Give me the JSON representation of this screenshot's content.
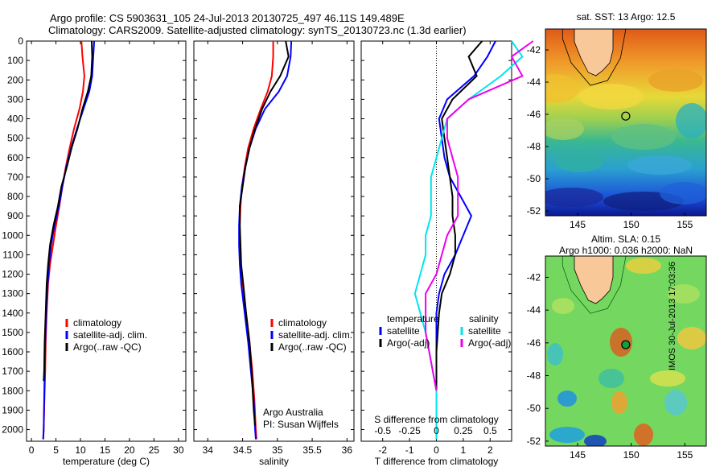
{
  "header": {
    "line1": "Argo profile: CS 5903631_105 24-Jul-2013 20130725_497 46.11S 149.489E",
    "line2": "Climatology: CARS2009. Satellite-adjusted climatology: synTS_20130723.nc (1.3d earlier)"
  },
  "side_stamp": "IMOS 30-Jul-2013 17:03:36",
  "colors": {
    "climatology": "#ff0000",
    "satellite": "#0000ff",
    "argo": "#000000",
    "sat_salinity": "#00e5ee",
    "argo_salinity": "#ee00ee"
  },
  "chart_data": [
    {
      "type": "line",
      "panel": "temperature",
      "xlabel": "temperature (deg C)",
      "ylabel": "",
      "xlim": [
        -1,
        31.5
      ],
      "ylim": [
        2060,
        0
      ],
      "y_reversed": true,
      "xticks": [
        "0",
        "5",
        "10",
        "15",
        "20",
        "25",
        "30"
      ],
      "yticks": [
        "0",
        "100",
        "200",
        "300",
        "400",
        "500",
        "600",
        "700",
        "800",
        "900",
        "1000",
        "1100",
        "1200",
        "1300",
        "1400",
        "1500",
        "1600",
        "1700",
        "1800",
        "1900",
        "2000"
      ],
      "legend": [
        "climatology",
        "satellite-adj. clim.",
        "Argo(..raw -QC)"
      ],
      "series": [
        {
          "name": "climatology",
          "color": "#ff0000",
          "x": [
            10.2,
            10.4,
            10.8,
            10.5,
            9.8,
            8.7,
            7.8,
            7.0,
            6.3,
            5.7,
            5.0,
            4.4,
            3.8,
            3.4,
            3.1,
            2.9,
            2.8,
            2.7,
            2.6,
            2.5,
            2.4
          ],
          "y": [
            0,
            80,
            180,
            260,
            350,
            450,
            550,
            650,
            750,
            850,
            950,
            1050,
            1150,
            1250,
            1400,
            1550,
            1700,
            1800,
            1900,
            2000,
            2050
          ]
        },
        {
          "name": "satellite-adj. clim.",
          "color": "#0000ff",
          "x": [
            12.8,
            12.6,
            12.4,
            11.8,
            10.6,
            9.3,
            8.1,
            7.1,
            6.3,
            5.6,
            4.7,
            4.0,
            3.6,
            3.3,
            3.0,
            2.8,
            2.7,
            2.6,
            2.5,
            2.4
          ],
          "y": [
            0,
            80,
            180,
            260,
            350,
            450,
            550,
            650,
            750,
            850,
            950,
            1050,
            1150,
            1250,
            1400,
            1550,
            1700,
            1850,
            2000,
            2050
          ]
        },
        {
          "name": "Argo(..raw -QC)",
          "color": "#000000",
          "x": [
            12.3,
            12.4,
            12.2,
            11.5,
            10.4,
            9.4,
            8.2,
            7.2,
            6.1,
            5.4,
            4.5,
            3.8,
            3.4,
            3.1,
            2.9,
            2.7,
            2.6,
            2.5
          ],
          "y": [
            0,
            80,
            180,
            260,
            350,
            450,
            550,
            650,
            750,
            850,
            950,
            1050,
            1150,
            1250,
            1400,
            1550,
            1700,
            1750
          ]
        }
      ]
    },
    {
      "type": "line",
      "panel": "salinity",
      "xlabel": "salinity",
      "xlim": [
        33.8,
        36.1
      ],
      "ylim": [
        2060,
        0
      ],
      "xticks": [
        "34",
        "34.5",
        "35",
        "35.5",
        "36"
      ],
      "legend": [
        "climatology",
        "satellite-adj. clim.",
        "Argo(..raw -QC)"
      ],
      "annotation": [
        "Argo Australia",
        "PI: Susan Wijffels"
      ],
      "series": [
        {
          "name": "climatology",
          "color": "#ff0000",
          "x": [
            34.94,
            34.94,
            34.92,
            34.86,
            34.76,
            34.66,
            34.58,
            34.53,
            34.49,
            34.47,
            34.46,
            34.46,
            34.47,
            34.5,
            34.55,
            34.6,
            34.64,
            34.67,
            34.69,
            34.7
          ],
          "y": [
            0,
            80,
            180,
            260,
            350,
            450,
            550,
            650,
            750,
            850,
            950,
            1050,
            1150,
            1250,
            1400,
            1550,
            1700,
            1850,
            2000,
            2050
          ]
        },
        {
          "name": "satellite-adj. clim.",
          "color": "#0000ff",
          "x": [
            35.2,
            35.19,
            35.14,
            35.02,
            34.82,
            34.69,
            34.6,
            34.54,
            34.49,
            34.46,
            34.45,
            34.45,
            34.46,
            34.48,
            34.53,
            34.58,
            34.62,
            34.66,
            34.68,
            34.69
          ],
          "y": [
            0,
            80,
            180,
            260,
            350,
            450,
            550,
            650,
            750,
            850,
            950,
            1050,
            1150,
            1250,
            1400,
            1550,
            1700,
            1850,
            2000,
            2050
          ]
        },
        {
          "name": "Argo(..raw -QC)",
          "color": "#000000",
          "x": [
            35.12,
            35.16,
            35.04,
            34.9,
            34.78,
            34.68,
            34.6,
            34.54,
            34.5,
            34.46,
            34.46,
            34.47,
            34.48,
            34.51,
            34.55,
            34.6,
            34.63,
            34.66,
            34.68
          ],
          "y": [
            0,
            80,
            180,
            260,
            350,
            450,
            550,
            650,
            750,
            850,
            950,
            1050,
            1150,
            1250,
            1400,
            1550,
            1700,
            1900,
            1980
          ]
        }
      ]
    },
    {
      "type": "line",
      "panel": "difference",
      "xlabel": "T difference from climatology",
      "xlabel_top": "S difference from climatology",
      "xlim": [
        -2.8,
        2.8
      ],
      "ylim": [
        2060,
        0
      ],
      "xticks": [
        "-2",
        "-1",
        "0",
        "1",
        "2"
      ],
      "xticks_s": [
        "-0.5",
        "-0.25",
        "0",
        "0.25",
        "0.5"
      ],
      "legend_temperature": [
        "temperature",
        "satellite",
        "Argo(-adj)"
      ],
      "legend_salinity": [
        "salinity",
        "satellite",
        "Argo(-adj)"
      ],
      "series": [
        {
          "name": "satellite",
          "group": "temperature",
          "color": "#0000ff",
          "x": [
            2.2,
            1.9,
            1.4,
            0.4,
            0.1,
            0.2,
            0.3,
            0.5,
            0.9,
            1.3,
            1.0,
            0.7,
            0.3,
            0.1,
            0.0,
            0.0,
            0.0,
            0.0
          ],
          "y": [
            0,
            80,
            180,
            300,
            400,
            500,
            600,
            700,
            800,
            900,
            1000,
            1100,
            1200,
            1300,
            1400,
            1600,
            1800,
            2050
          ]
        },
        {
          "name": "Argo(-adj)",
          "group": "temperature",
          "color": "#000000",
          "x": [
            1.7,
            1.2,
            1.5,
            0.6,
            0.2,
            0.3,
            0.4,
            0.5,
            0.6,
            0.6,
            0.7,
            0.7,
            0.5,
            0.2,
            0.1,
            0.0,
            0.0
          ],
          "y": [
            0,
            80,
            180,
            300,
            400,
            500,
            600,
            700,
            800,
            900,
            1000,
            1100,
            1200,
            1300,
            1400,
            1600,
            1800
          ]
        },
        {
          "name": "satellite",
          "group": "salinity",
          "color": "#00e5ee",
          "x": [
            0.7,
            0.8,
            0.6,
            0.3,
            0.1,
            0.05,
            0.0,
            -0.05,
            -0.05,
            -0.05,
            -0.1,
            -0.1,
            -0.15,
            -0.2,
            -0.1,
            0.0,
            0.0
          ],
          "y": [
            0,
            80,
            180,
            300,
            400,
            500,
            600,
            700,
            800,
            900,
            1000,
            1100,
            1200,
            1300,
            1500,
            1800,
            2050
          ]
        },
        {
          "name": "Argo(-adj)",
          "group": "salinity",
          "color": "#ee00ee",
          "x": [
            0.9,
            0.7,
            0.8,
            0.3,
            0.1,
            0.1,
            0.15,
            0.2,
            0.2,
            0.2,
            0.1,
            0.05,
            0.0,
            -0.1,
            -0.1,
            0.0
          ],
          "y": [
            0,
            80,
            180,
            300,
            400,
            500,
            600,
            700,
            800,
            900,
            1000,
            1100,
            1200,
            1300,
            1500,
            1800
          ]
        }
      ]
    },
    {
      "type": "heatmap",
      "panel": "sst_map",
      "title": "sat. SST: 13 Argo: 12.5",
      "xticks": [
        "145",
        "150",
        "155"
      ],
      "yticks": [
        "-42",
        "-44",
        "-46",
        "-48",
        "-50",
        "-52"
      ],
      "xlim": [
        142,
        157
      ],
      "ylim": [
        -52.3,
        -40.7
      ],
      "argo_position": {
        "lon": 149.489,
        "lat": -46.11
      }
    },
    {
      "type": "heatmap",
      "panel": "sla_map",
      "title_line1": "Altim. SLA: 0.15",
      "title_line2": "Argo h1000: 0.036 h2000: NaN",
      "xticks": [
        "145",
        "150",
        "155"
      ],
      "yticks": [
        "-42",
        "-44",
        "-46",
        "-48",
        "-50",
        "-52"
      ],
      "xlim": [
        142,
        157
      ],
      "ylim": [
        -52.3,
        -40.7
      ],
      "argo_position": {
        "lon": 149.489,
        "lat": -46.11
      }
    }
  ]
}
